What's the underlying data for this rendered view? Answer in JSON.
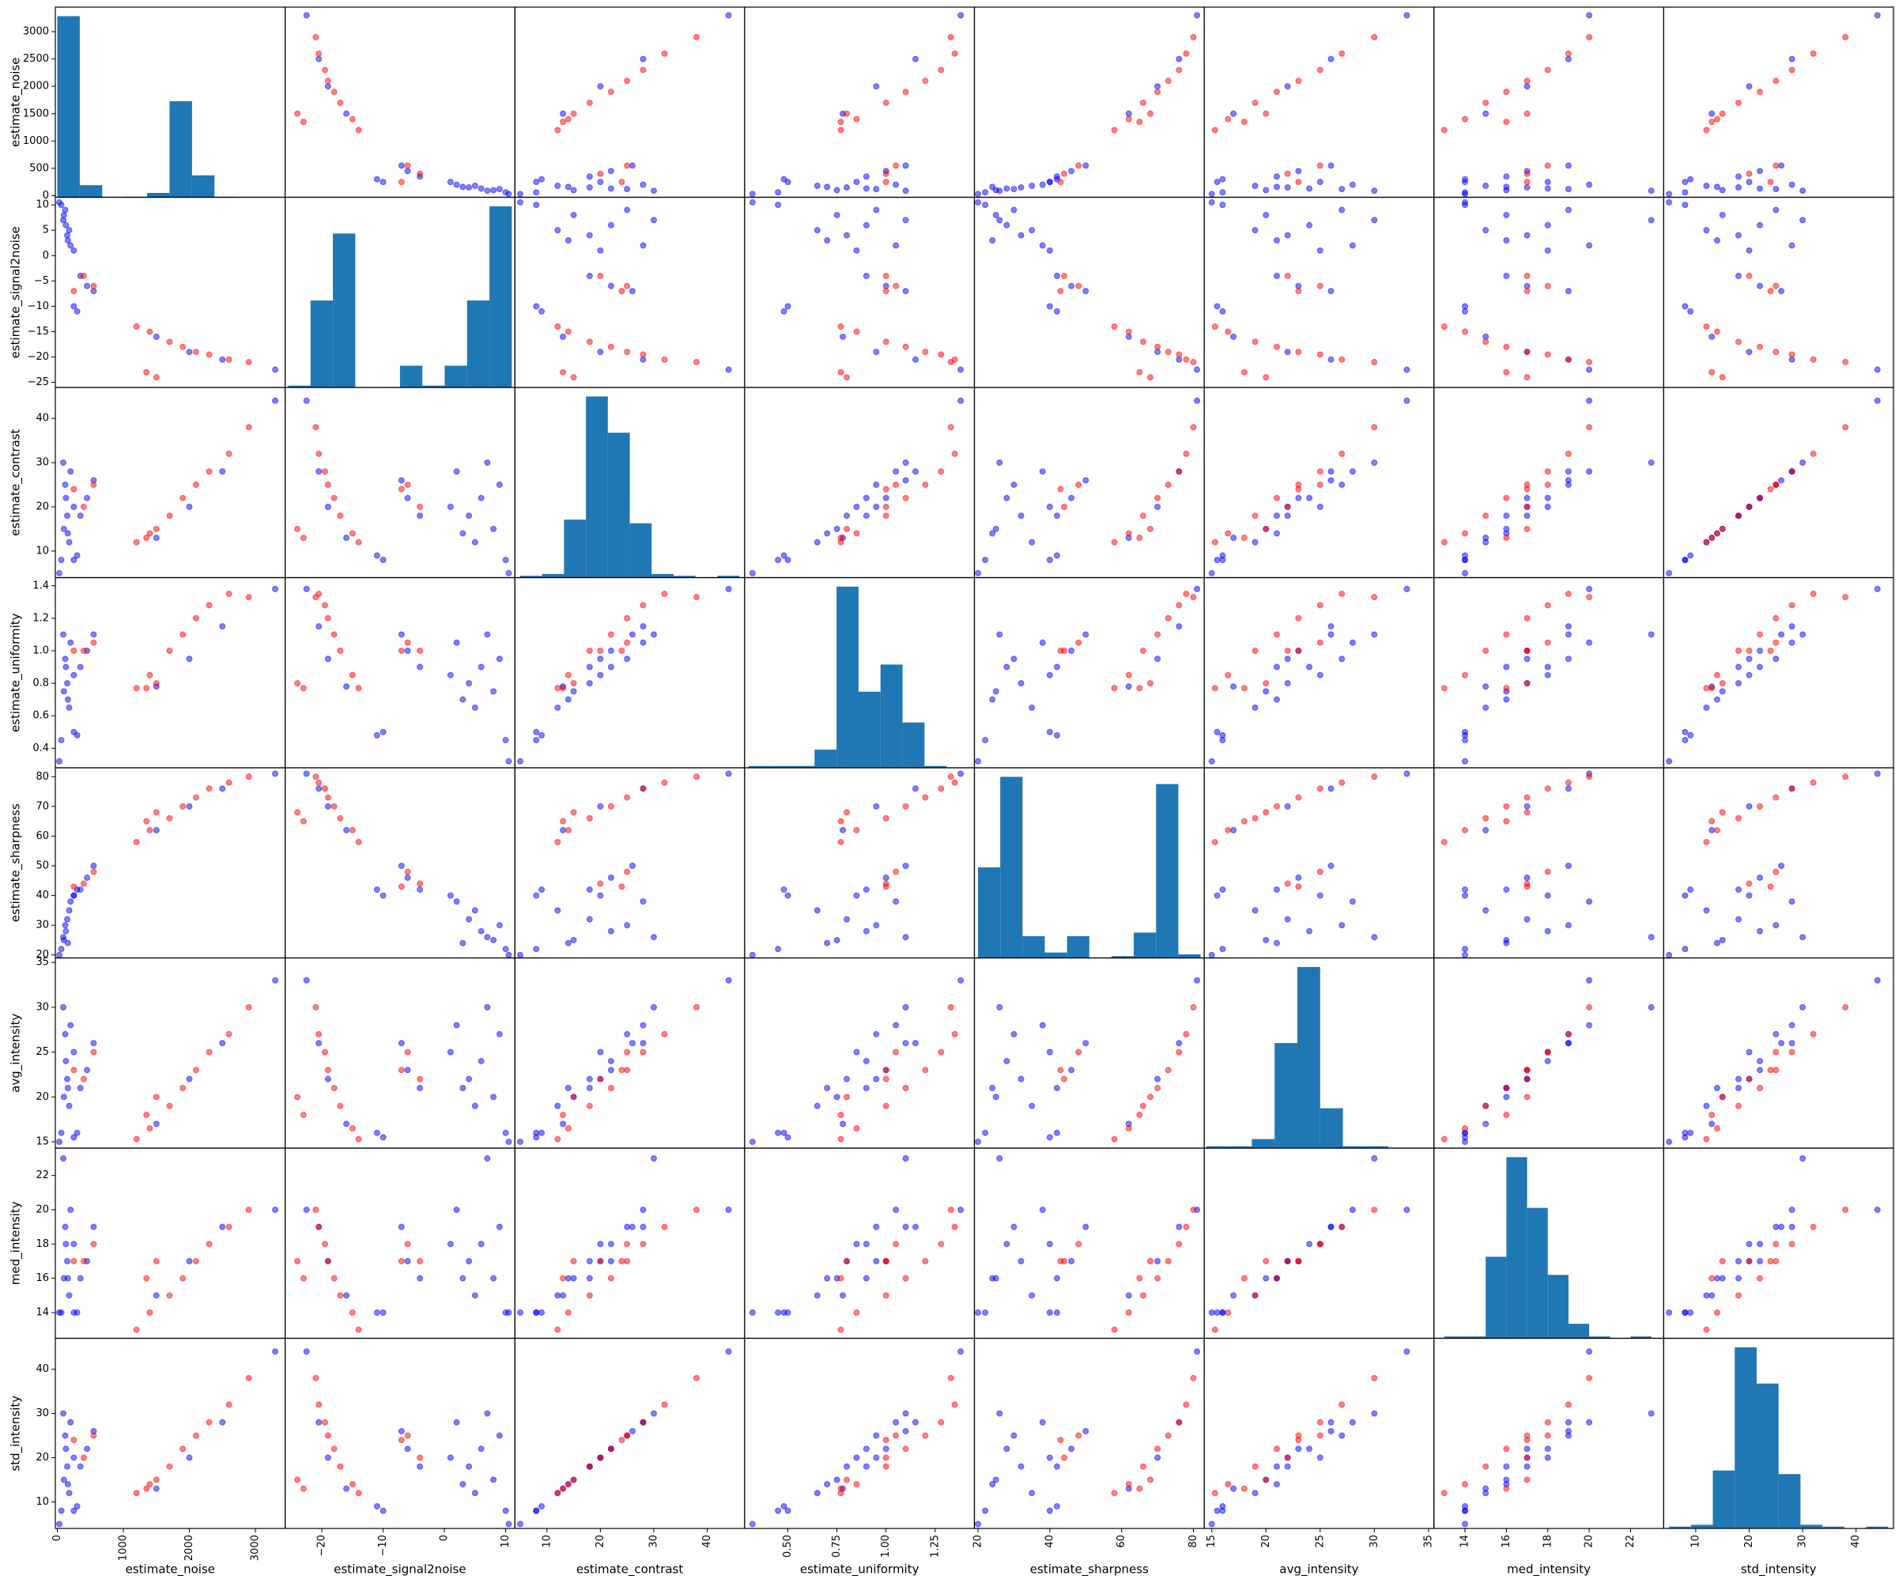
{
  "chart_data": {
    "type": "scatter_matrix",
    "hist_color": "#1f77b4",
    "columns": [
      {
        "label": "estimate_noise",
        "lim": [
          -30,
          3450
        ],
        "xticks": [
          0,
          1000,
          2000,
          3000
        ],
        "yticks": [
          0,
          500,
          1000,
          1500,
          2000,
          2500,
          3000
        ]
      },
      {
        "label": "estimate_signal2noise",
        "lim": [
          -26,
          11.5
        ],
        "xticks": [
          {
            "value": -20,
            "label": "−20"
          },
          {
            "value": -10,
            "label": "−10"
          },
          0,
          10
        ],
        "yticks": [
          {
            "value": -25,
            "label": "−25"
          },
          {
            "value": -20,
            "label": "−20"
          },
          {
            "value": -15,
            "label": "−15"
          },
          {
            "value": -10,
            "label": "−10"
          },
          {
            "value": -5,
            "label": "−5"
          },
          0,
          5,
          10
        ]
      },
      {
        "label": "estimate_contrast",
        "lim": [
          4,
          47
        ],
        "xticks": [
          10,
          20,
          30,
          40
        ],
        "yticks": [
          10,
          20,
          30,
          40
        ]
      },
      {
        "label": "estimate_uniformity",
        "lim": [
          0.28,
          1.45
        ],
        "xticks": [
          {
            "value": 0.5,
            "label": "0.50"
          },
          0.75,
          {
            "value": 1,
            "label": "1.00"
          },
          1.25
        ],
        "yticks": [
          0.4,
          0.6,
          0.8,
          {
            "value": 1,
            "label": "1.0"
          },
          1.2,
          1.4
        ]
      },
      {
        "label": "estimate_sharpness",
        "lim": [
          19,
          83
        ],
        "xticks": [
          20,
          40,
          60,
          80
        ],
        "yticks": [
          20,
          30,
          40,
          50,
          60,
          70,
          80
        ]
      },
      {
        "label": "avg_intensity",
        "lim": [
          14.3,
          35.5
        ],
        "xticks": [
          15,
          20,
          25,
          30,
          35
        ],
        "yticks": [
          15,
          20,
          25,
          30,
          35
        ]
      },
      {
        "label": "med_intensity",
        "lim": [
          12.5,
          23.6
        ],
        "xticks": [
          14,
          16,
          18,
          20,
          22
        ],
        "yticks": [
          14,
          16,
          18,
          20,
          22
        ]
      },
      {
        "label": "std_intensity",
        "lim": [
          4,
          47
        ],
        "xticks": [
          10,
          20,
          30,
          40
        ],
        "yticks": [
          10,
          20,
          30,
          40
        ]
      }
    ],
    "histograms": [
      {
        "bins": [
          0,
          340,
          680,
          1020,
          1360,
          1700,
          2040,
          2380,
          2720,
          3060,
          3400
        ],
        "counts": [
          3300,
          220,
          0,
          10,
          80,
          1750,
          400,
          10,
          2,
          1
        ]
      },
      {
        "bins": [
          -25.5,
          -21.85,
          -18.2,
          -14.55,
          -10.9,
          -7.25,
          -3.6,
          0.05,
          3.7,
          7.35,
          11
        ],
        "counts": [
          1,
          48,
          85,
          0,
          0,
          12,
          1,
          12,
          48,
          100
        ]
      },
      {
        "bins": [
          5,
          9.1,
          13.2,
          17.3,
          21.4,
          25.5,
          29.6,
          33.7,
          37.8,
          41.9,
          46
        ],
        "counts": [
          1,
          2,
          32,
          100,
          80,
          30,
          2,
          1,
          0,
          1
        ]
      },
      {
        "bins": [
          0.3,
          0.412,
          0.524,
          0.636,
          0.748,
          0.86,
          0.972,
          1.084,
          1.196,
          1.308,
          1.42
        ],
        "counts": [
          1,
          1,
          1,
          10,
          100,
          42,
          57,
          25,
          1,
          0
        ]
      },
      {
        "bins": [
          20,
          26.2,
          32.4,
          38.6,
          44.8,
          51,
          57.2,
          63.4,
          69.6,
          75.8,
          82
        ],
        "counts": [
          50,
          100,
          12,
          3,
          12,
          0,
          1,
          14,
          96,
          2
        ]
      },
      {
        "bins": [
          14.5,
          16.6,
          18.7,
          20.8,
          22.9,
          25,
          27.1,
          29.2,
          31.3,
          33.4,
          35.5
        ],
        "counts": [
          1,
          1,
          5,
          58,
          100,
          22,
          1,
          1,
          0,
          0
        ]
      },
      {
        "bins": [
          13,
          14,
          15,
          16,
          17,
          18,
          19,
          20,
          21,
          22,
          23
        ],
        "counts": [
          1,
          1,
          45,
          100,
          72,
          35,
          8,
          1,
          0,
          1
        ]
      },
      {
        "bins": [
          5,
          9.1,
          13.2,
          17.3,
          21.4,
          25.5,
          29.6,
          33.7,
          37.8,
          41.9,
          46
        ],
        "counts": [
          1,
          2,
          32,
          100,
          80,
          30,
          2,
          1,
          0,
          1
        ]
      }
    ],
    "series": [
      {
        "color": "#0000ff",
        "rows": [
          [
            60,
            10,
            8,
            0.45,
            22,
            16,
            14,
            8
          ],
          [
            100,
            8,
            15,
            0.75,
            25,
            20,
            16,
            15
          ],
          [
            130,
            6,
            22,
            0.9,
            28,
            24,
            18,
            22
          ],
          [
            150,
            4,
            18,
            0.8,
            32,
            22,
            17,
            18
          ],
          [
            200,
            2,
            28,
            1.05,
            38,
            28,
            20,
            28
          ],
          [
            120,
            9,
            25,
            0.95,
            30,
            27,
            19,
            25
          ],
          [
            180,
            5,
            12,
            0.65,
            35,
            19,
            15,
            12
          ],
          [
            250,
            1,
            20,
            0.85,
            40,
            25,
            18,
            20
          ],
          [
            90,
            7,
            30,
            1.1,
            26,
            30,
            23,
            30
          ],
          [
            160,
            3,
            14,
            0.7,
            24,
            21,
            16,
            14
          ],
          [
            350,
            -4,
            18,
            0.9,
            42,
            21,
            16,
            18
          ],
          [
            450,
            -6,
            22,
            1.0,
            46,
            23,
            17,
            22
          ],
          [
            550,
            -7,
            26,
            1.1,
            50,
            26,
            19,
            26
          ],
          [
            250,
            -10,
            8,
            0.5,
            40,
            15.5,
            14,
            8
          ],
          [
            300,
            -11,
            9,
            0.48,
            42,
            16,
            14,
            9
          ],
          [
            1500,
            -16,
            13,
            0.78,
            62,
            17,
            15,
            13
          ],
          [
            2000,
            -19,
            20,
            0.95,
            70,
            22,
            17,
            20
          ],
          [
            2500,
            -20.5,
            28,
            1.15,
            76,
            26,
            19,
            28
          ],
          [
            3300,
            -22.5,
            44,
            1.38,
            81,
            33,
            20,
            44
          ],
          [
            30,
            10.5,
            5,
            0.32,
            20,
            15,
            14,
            5
          ]
        ]
      },
      {
        "color": "#ff0000",
        "rows": [
          [
            1200,
            -14,
            12,
            0.77,
            58,
            15.3,
            13,
            12
          ],
          [
            1400,
            -15,
            14,
            0.85,
            62,
            16.5,
            14,
            14
          ],
          [
            1700,
            -17,
            18,
            1.0,
            66,
            19,
            15,
            18
          ],
          [
            1900,
            -18,
            22,
            1.1,
            70,
            21,
            16,
            22
          ],
          [
            2100,
            -19,
            25,
            1.2,
            73,
            23,
            17,
            25
          ],
          [
            2300,
            -19.5,
            28,
            1.28,
            76,
            25,
            18,
            28
          ],
          [
            2600,
            -20.5,
            32,
            1.35,
            78,
            27,
            19,
            32
          ],
          [
            2900,
            -21,
            38,
            1.33,
            80,
            30,
            20,
            38
          ],
          [
            1350,
            -23,
            13,
            0.77,
            65,
            18,
            16,
            13
          ],
          [
            1500,
            -24,
            15,
            0.8,
            68,
            20,
            17,
            15
          ],
          [
            400,
            -4,
            20,
            1.0,
            44,
            22,
            17,
            20
          ],
          [
            550,
            -6,
            25,
            1.05,
            48,
            25,
            18,
            25
          ],
          [
            250,
            -7,
            24,
            1.0,
            43,
            23,
            17,
            24
          ]
        ]
      }
    ]
  }
}
